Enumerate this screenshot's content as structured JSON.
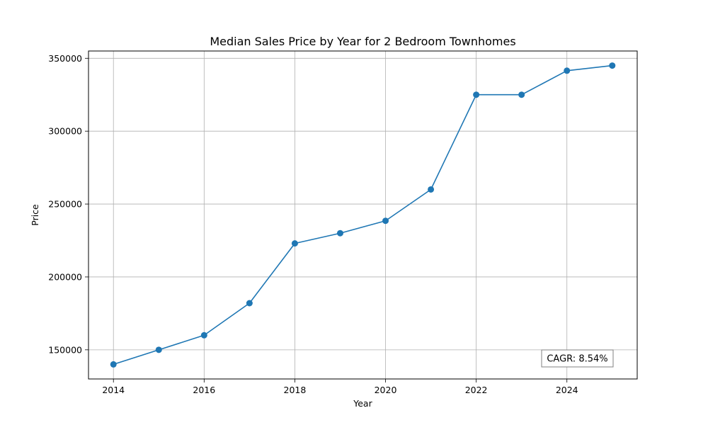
{
  "chart_data": {
    "type": "line",
    "title": "Median Sales Price by Year for 2 Bedroom Townhomes",
    "xlabel": "Year",
    "ylabel": "Price",
    "xlim": [
      2013.45,
      2025.55
    ],
    "ylim": [
      130000,
      355000
    ],
    "xticks": [
      2014,
      2016,
      2018,
      2020,
      2022,
      2024
    ],
    "yticks": [
      150000,
      200000,
      250000,
      300000,
      350000
    ],
    "grid": true,
    "series": [
      {
        "color": "#1f77b4",
        "marker": "circle",
        "x": [
          2014,
          2015,
          2016,
          2017,
          2018,
          2019,
          2020,
          2021,
          2022,
          2023,
          2024,
          2025
        ],
        "values": [
          140000,
          150000,
          160000,
          182000,
          223000,
          230000,
          238500,
          260000,
          325000,
          325000,
          341500,
          345000
        ]
      }
    ],
    "annotations": [
      {
        "text": "CAGR: 8.54%",
        "placement": "bottom-right"
      }
    ]
  }
}
